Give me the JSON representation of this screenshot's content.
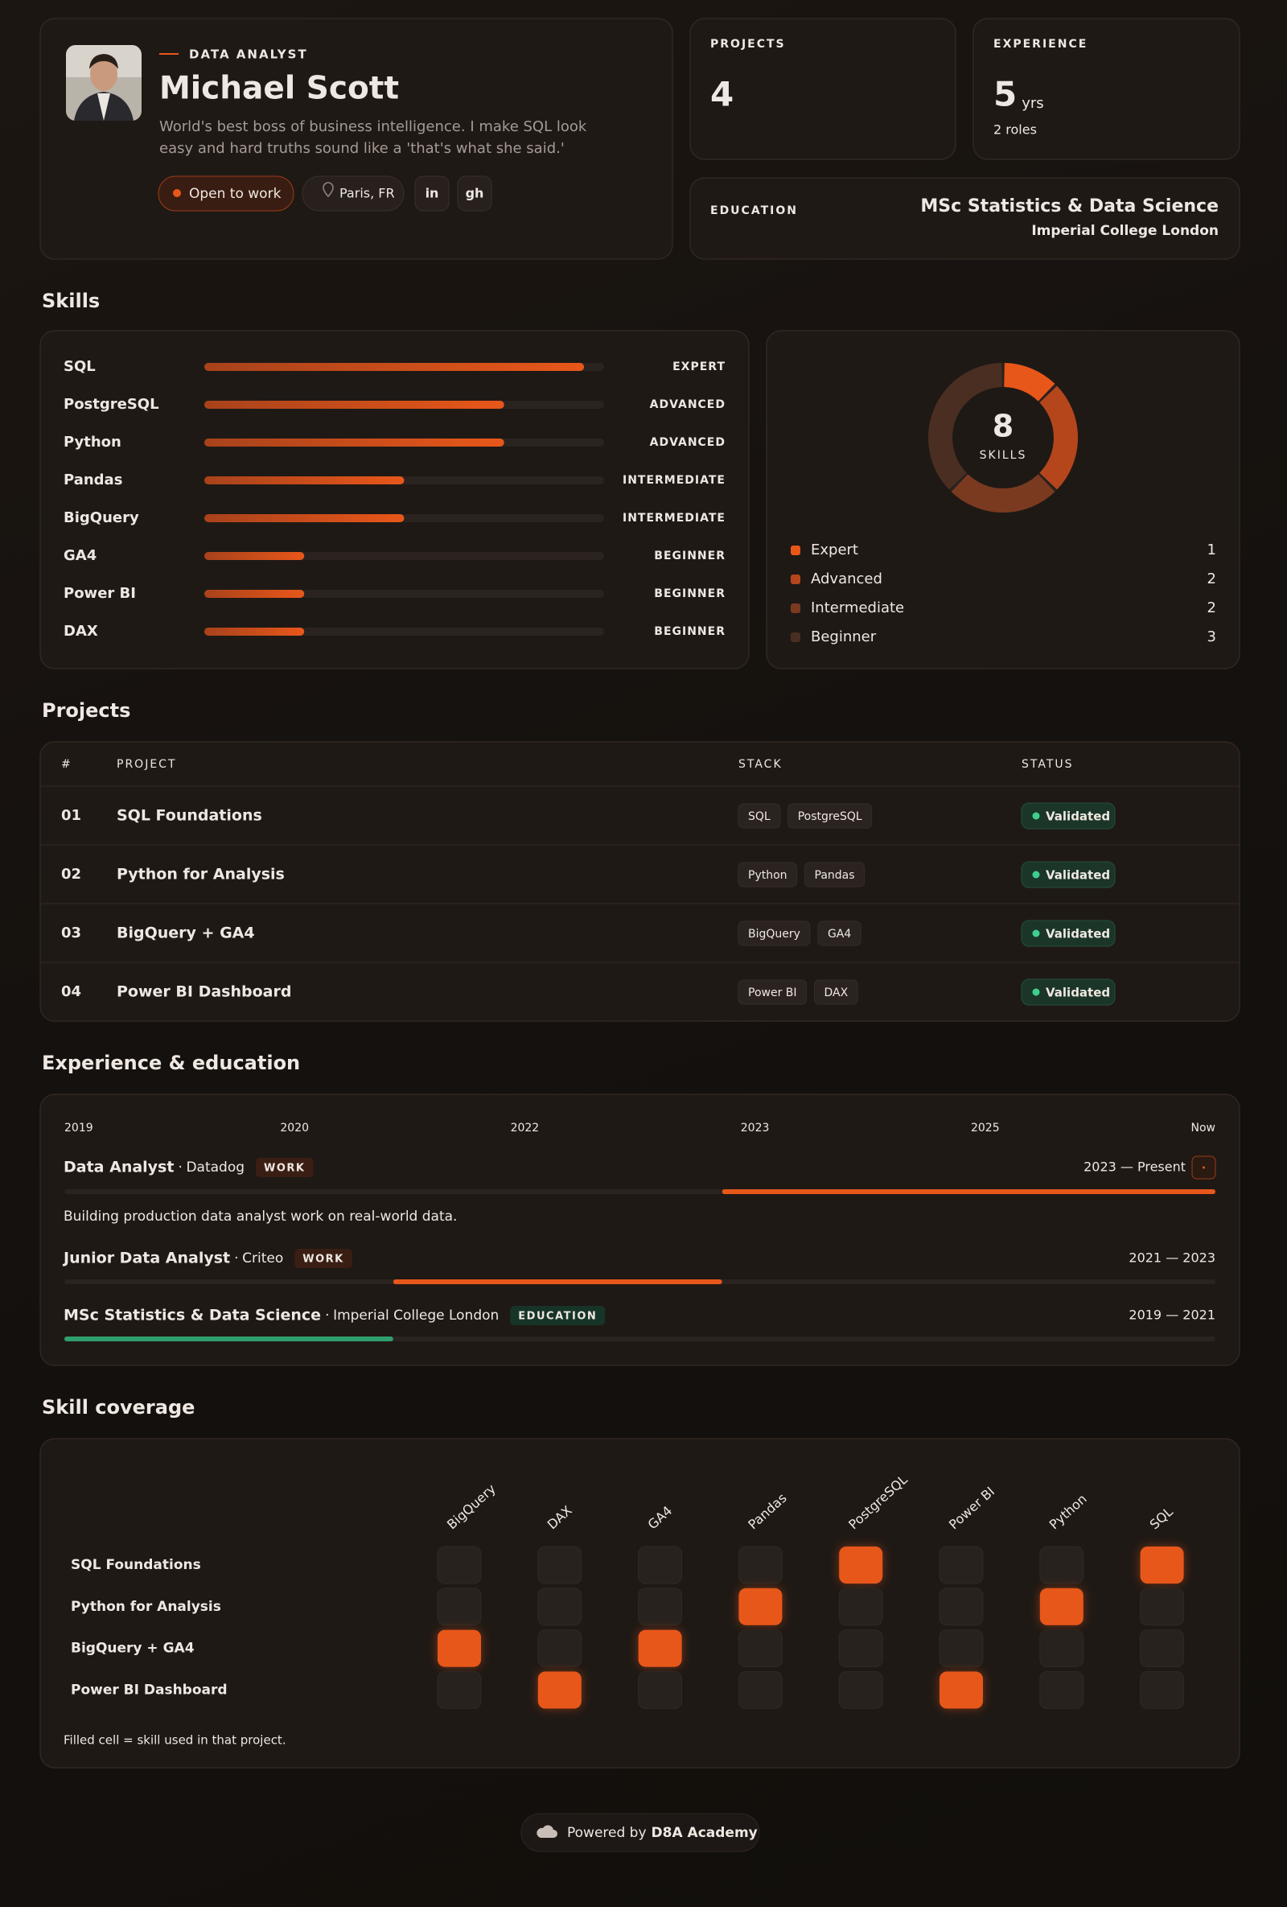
{
  "profile": {
    "role": "DATA ANALYST",
    "name": "Michael Scott",
    "bio": "World's best boss of business intelligence. I make SQL look easy and hard truths sound like a 'that's what she said.'",
    "status": "Open to work",
    "location": "Paris, FR",
    "links": [
      "in",
      "gh"
    ]
  },
  "stats": {
    "projects": {
      "label": "PROJECTS",
      "value": 4
    },
    "experience": {
      "label": "EXPERIENCE",
      "value": 5,
      "unit": "yrs",
      "note": "2 roles"
    },
    "education": {
      "label": "EDUCATION",
      "degree": "MSc Statistics & Data Science",
      "school": "Imperial College London"
    }
  },
  "skills": {
    "title": "Skills",
    "items": [
      {
        "name": "SQL",
        "level": 95,
        "tier": "EXPERT",
        "tier_color": "#e8571a"
      },
      {
        "name": "PostgreSQL",
        "level": 75,
        "tier": "ADVANCED",
        "tier_color": "#e8571a"
      },
      {
        "name": "Python",
        "level": 75,
        "tier": "ADVANCED",
        "tier_color": "#e8571a"
      },
      {
        "name": "Pandas",
        "level": 50,
        "tier": "INTERMEDIATE",
        "tier_color": "#6f655f"
      },
      {
        "name": "BigQuery",
        "level": 50,
        "tier": "INTERMEDIATE",
        "tier_color": "#6f655f"
      },
      {
        "name": "GA4",
        "level": 25,
        "tier": "BEGINNER",
        "tier_color": "#6f655f"
      },
      {
        "name": "Power BI",
        "level": 25,
        "tier": "BEGINNER",
        "tier_color": "#6f655f"
      },
      {
        "name": "DAX",
        "level": 25,
        "tier": "BEGINNER",
        "tier_color": "#6f655f"
      }
    ],
    "total": 8,
    "total_label": "SKILLS",
    "breakdown": [
      {
        "name": "Expert",
        "count": 1,
        "color": "#e8571a"
      },
      {
        "name": "Advanced",
        "count": 2,
        "color": "#b5461c"
      },
      {
        "name": "Intermediate",
        "count": 2,
        "color": "#7a3a20"
      },
      {
        "name": "Beginner",
        "count": 3,
        "color": "#4a2e22"
      }
    ]
  },
  "projects": {
    "title": "Projects",
    "columns": [
      "#",
      "PROJECT",
      "STACK",
      "STATUS"
    ],
    "rows": [
      {
        "id": "01",
        "name": "SQL Foundations",
        "stack": [
          "SQL",
          "PostgreSQL"
        ],
        "status": "Validated"
      },
      {
        "id": "02",
        "name": "Python for Analysis",
        "stack": [
          "Python",
          "Pandas"
        ],
        "status": "Validated"
      },
      {
        "id": "03",
        "name": "BigQuery + GA4",
        "stack": [
          "BigQuery",
          "GA4"
        ],
        "status": "Validated"
      },
      {
        "id": "04",
        "name": "Power BI Dashboard",
        "stack": [
          "Power BI",
          "DAX"
        ],
        "status": "Validated"
      }
    ]
  },
  "experience": {
    "title": "Experience & education",
    "axis": [
      "2019",
      "2020",
      "2022",
      "2023",
      "2025",
      "Now"
    ],
    "range": [
      2019,
      2026
    ],
    "items": [
      {
        "title": "Data Analyst",
        "org": "Datadog",
        "kind": "WORK",
        "period": "2023 — Present",
        "start": 2023,
        "end": 2026,
        "color": "#e8571a",
        "description": "Building production data analyst work on real-world data."
      },
      {
        "title": "Junior Data Analyst",
        "org": "Criteo",
        "kind": "WORK",
        "period": "2021 — 2023",
        "start": 2021,
        "end": 2023,
        "color": "#e8571a"
      },
      {
        "title": "MSc Statistics & Data Science",
        "org": "Imperial College London",
        "kind": "EDUCATION",
        "period": "2019 — 2021",
        "start": 2019,
        "end": 2021,
        "color": "#2f9e6e"
      }
    ]
  },
  "coverage": {
    "title": "Skill coverage",
    "skills": [
      "BigQuery",
      "DAX",
      "GA4",
      "Pandas",
      "PostgreSQL",
      "Power BI",
      "Python",
      "SQL"
    ],
    "projects": [
      "SQL Foundations",
      "Python for Analysis",
      "BigQuery + GA4",
      "Power BI Dashboard"
    ],
    "matrix": [
      [
        0,
        0,
        0,
        0,
        1,
        0,
        0,
        1
      ],
      [
        0,
        0,
        0,
        1,
        0,
        0,
        1,
        0
      ],
      [
        1,
        0,
        1,
        0,
        0,
        0,
        0,
        0
      ],
      [
        0,
        1,
        0,
        0,
        0,
        1,
        0,
        0
      ]
    ],
    "note": "Filled cell = skill used in that project."
  },
  "footer": {
    "prefix": "Powered by",
    "brand": "D8A Academy"
  }
}
